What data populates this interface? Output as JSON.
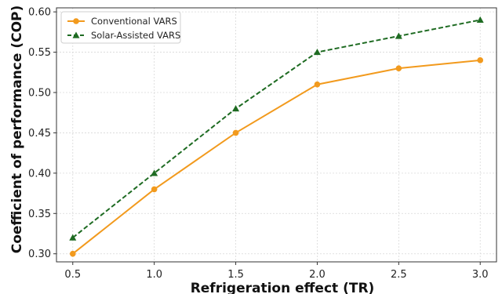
{
  "chart_data": {
    "type": "line",
    "title": "",
    "xlabel": "Refrigeration effect (TR)",
    "ylabel": "Coefficient of performance (COP)",
    "x": [
      0.5,
      1.0,
      1.5,
      2.0,
      2.5,
      3.0
    ],
    "xticks": [
      "0.5",
      "1.0",
      "1.5",
      "2.0",
      "2.5",
      "3.0"
    ],
    "yticks": [
      "0.30",
      "0.35",
      "0.40",
      "0.45",
      "0.50",
      "0.55",
      "0.60"
    ],
    "xlim": [
      0.4,
      3.1
    ],
    "ylim": [
      0.29,
      0.605
    ],
    "grid": true,
    "legend_position": "top-left",
    "series": [
      {
        "name": "Conventional VARS",
        "values": [
          0.3,
          0.38,
          0.45,
          0.51,
          0.53,
          0.54
        ],
        "color": "#f29a1d",
        "marker": "circle",
        "line_style": "solid"
      },
      {
        "name": "Solar-Assisted VARS",
        "values": [
          0.32,
          0.4,
          0.48,
          0.55,
          0.57,
          0.59
        ],
        "color": "#1e6b22",
        "marker": "triangle",
        "line_style": "dashed"
      }
    ]
  }
}
